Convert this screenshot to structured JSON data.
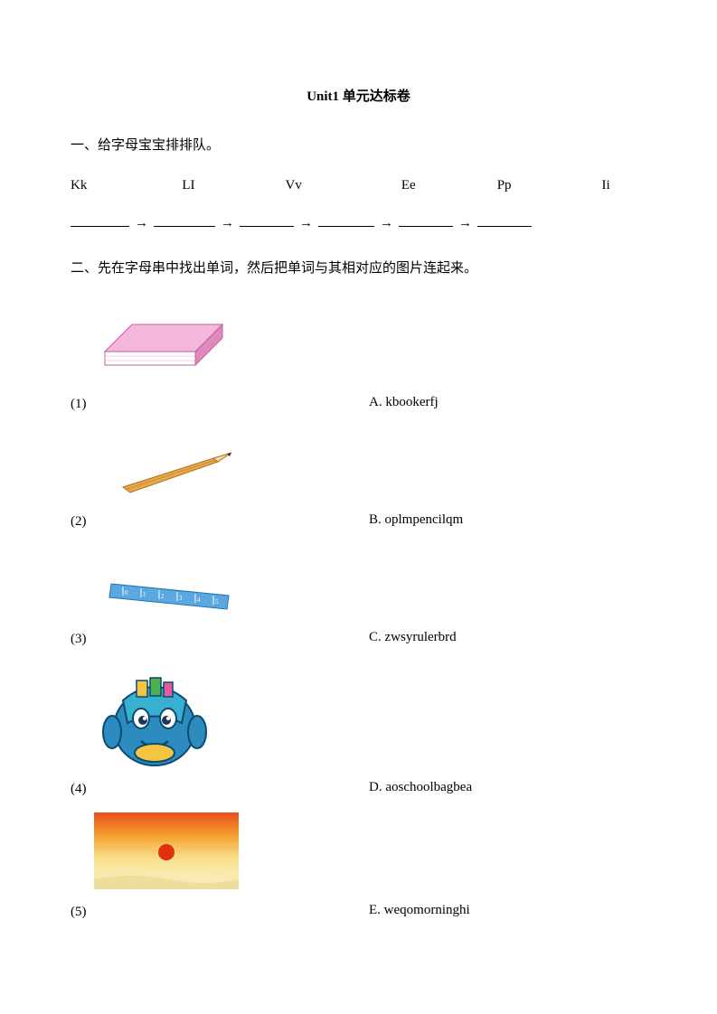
{
  "title": "Unit1  单元达标卷",
  "section1": {
    "heading": "一、给字母宝宝排排队。",
    "letters": [
      "Kk",
      "LI",
      "Vv",
      "Ee",
      "Pp",
      "Ii"
    ],
    "letter_gaps": [
      0,
      105,
      100,
      110,
      90,
      100
    ],
    "arrow_blanks": [
      65,
      68,
      60,
      62,
      60,
      60
    ],
    "arrow": "→"
  },
  "section2": {
    "heading": "二、先在字母串中找出单词，然后把单词与其相对应的图片连起来。",
    "items": [
      {
        "num": "(1)",
        "label": "A. kbookerfj"
      },
      {
        "num": "(2)",
        "label": "B. oplmpencilqm"
      },
      {
        "num": "(3)",
        "label": "C. zwsyrulerbrd"
      },
      {
        "num": "(4)",
        "label": "D. aoschoolbagbea"
      },
      {
        "num": "(5)",
        "label": "E. weqomorninghi"
      }
    ]
  },
  "colors": {
    "book_top": "#f5b8dc",
    "book_side": "#e089bd",
    "book_page": "#ffffff",
    "pencil_body": "#e8a84a",
    "pencil_tip": "#f5d6a0",
    "pencil_lead": "#333333",
    "ruler": "#5aa8e0",
    "bag_body": "#2e8bc0",
    "bag_flap": "#3ab0d0",
    "bag_accent": "#f5c542",
    "sky_top": "#e84c1a",
    "sky_mid": "#f5a030",
    "sky_low": "#f8e08c",
    "sky_bottom": "#fdf5d0",
    "sun": "#e03010"
  }
}
